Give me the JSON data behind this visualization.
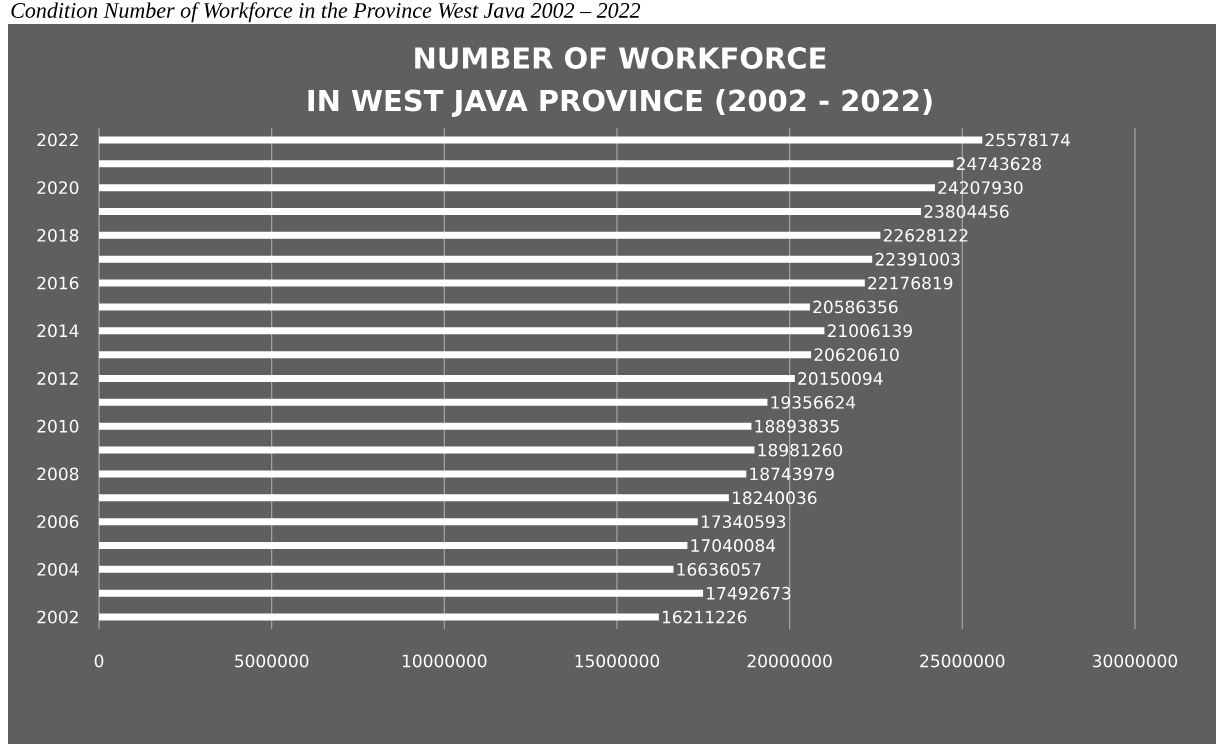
{
  "chart_data": {
    "type": "bar",
    "orientation": "horizontal",
    "title": "NUMBER OF WORKFORCE",
    "subtitle": "IN WEST JAVA PROVINCE (2002 - 2022)",
    "annotations": [
      "Condition Number of Workforce in the Province West Java 2002 – 2022"
    ],
    "categories": [
      "2022",
      null,
      "2020",
      null,
      "2018",
      null,
      "2016",
      null,
      "2014",
      null,
      "2012",
      null,
      "2010",
      null,
      "2008",
      null,
      "2006",
      null,
      "2004",
      null,
      "2002"
    ],
    "values": [
      25578174,
      24743628,
      24207930,
      23804456,
      22628122,
      22391003,
      22176819,
      20586356,
      21006139,
      20620610,
      20150094,
      19356624,
      18893835,
      18981260,
      18743979,
      18240036,
      17340593,
      17040084,
      16636057,
      17492673,
      16211226
    ],
    "color": "#ffffff",
    "xlim": [
      0,
      30000000
    ],
    "xticks": [
      0,
      5000000,
      10000000,
      15000000,
      20000000,
      25000000,
      30000000
    ],
    "grid": "x",
    "data_labels": true
  }
}
